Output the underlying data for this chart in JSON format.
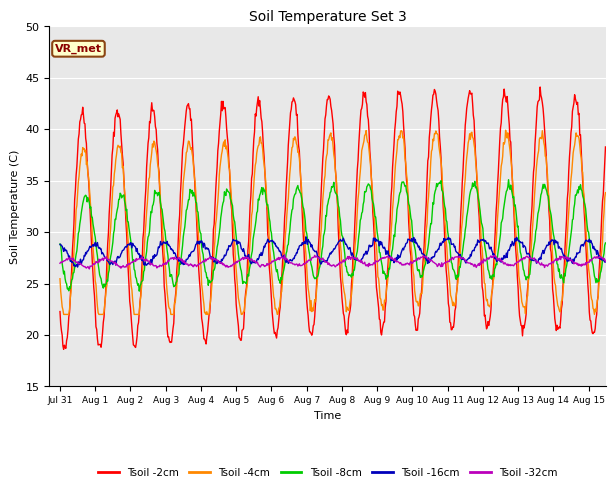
{
  "title": "Soil Temperature Set 3",
  "xlabel": "Time",
  "ylabel": "Soil Temperature (C)",
  "ylim": [
    15,
    50
  ],
  "xtick_labels": [
    "Jul 31",
    "Aug 1",
    "Aug 2",
    "Aug 3",
    "Aug 4",
    "Aug 5",
    "Aug 6",
    "Aug 7",
    "Aug 8",
    "Aug 9",
    "Aug 10",
    "Aug 11",
    "Aug 12",
    "Aug 13",
    "Aug 14",
    "Aug 15"
  ],
  "ytick_values": [
    15,
    20,
    25,
    30,
    35,
    40,
    45,
    50
  ],
  "legend_labels": [
    "Tsoil -2cm",
    "Tsoil -4cm",
    "Tsoil -8cm",
    "Tsoil -16cm",
    "Tsoil -32cm"
  ],
  "line_colors": [
    "#ff0000",
    "#ff8800",
    "#00cc00",
    "#0000bb",
    "#bb00bb"
  ],
  "background_color": "#e8e8e8",
  "fig_facecolor": "#ffffff",
  "annotation_text": "VR_met",
  "seed": 42,
  "t2_params": {
    "base": 30.0,
    "amp": 11.5,
    "phase": 0.0,
    "noise": 0.3,
    "trend_rate": 0.22,
    "trend_peak": 10.5,
    "trend_down": 0.15,
    "min": 17,
    "max": 47
  },
  "t4_params": {
    "base": 29.5,
    "amp": 8.5,
    "phase": 0.04,
    "noise": 0.25,
    "trend_rate": 0.18,
    "trend_peak": 10.5,
    "trend_down": 0.12,
    "min": 22,
    "max": 44
  },
  "t8_params": {
    "base": 29.0,
    "amp": 4.5,
    "phase": 0.12,
    "noise": 0.2,
    "trend_rate": 0.12,
    "trend_peak": 10.5,
    "trend_down": 0.1,
    "min": 22,
    "max": 37
  },
  "t16_params": {
    "base": 27.8,
    "amp": 1.0,
    "phase": 0.35,
    "noise": 0.15,
    "trend_rate": 0.05,
    "trend_peak": 10.5,
    "trend_down": 0.04,
    "min": 26,
    "max": 30
  },
  "t32_params": {
    "base": 27.0,
    "amp": 0.4,
    "phase": 0.65,
    "noise": 0.08,
    "trend_rate": 0.02,
    "trend_peak": 10.5,
    "trend_down": 0.01,
    "min": 26.3,
    "max": 27.8
  }
}
